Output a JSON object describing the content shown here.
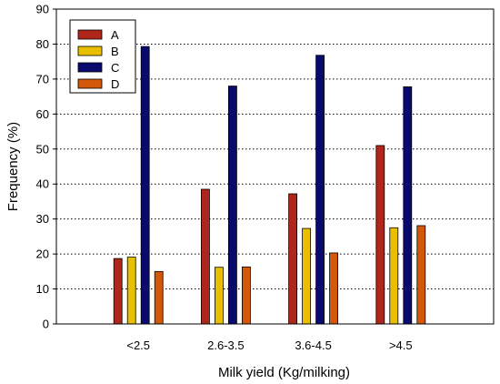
{
  "chart_data": {
    "type": "bar",
    "xlabel": "Milk yield (Kg/milking)",
    "ylabel": "Frequency (%)",
    "ylim": [
      0,
      90
    ],
    "yticks": [
      0,
      10,
      20,
      30,
      40,
      50,
      60,
      70,
      80,
      90
    ],
    "grid": "horizontal dotted",
    "legend": "top-left",
    "categories": [
      "<2.5",
      "2.6-3.5",
      "3.6-4.5",
      ">4.5"
    ],
    "series": [
      {
        "name": "A",
        "color": "#b0261a",
        "values": [
          18.7,
          38.5,
          37.2,
          51.0
        ]
      },
      {
        "name": "B",
        "color": "#e8c000",
        "values": [
          19.1,
          16.2,
          27.3,
          27.5
        ]
      },
      {
        "name": "C",
        "color": "#0a0a6e",
        "values": [
          79.3,
          68.0,
          76.8,
          67.8
        ]
      },
      {
        "name": "D",
        "color": "#d4580a",
        "values": [
          15.0,
          16.3,
          20.3,
          28.1
        ]
      }
    ]
  }
}
